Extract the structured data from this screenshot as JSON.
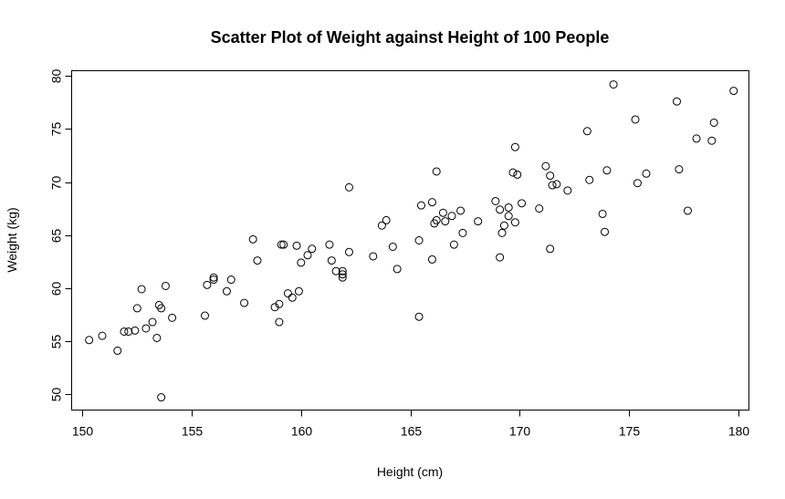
{
  "chart_data": {
    "type": "scatter",
    "title": "Scatter Plot of Weight against Height of 100 People",
    "xlabel": "Height (cm)",
    "ylabel": "Weight (kg)",
    "xlim": [
      149.5,
      180.5
    ],
    "ylim": [
      48.5,
      80.5
    ],
    "xticks": [
      150,
      155,
      160,
      165,
      170,
      175,
      180
    ],
    "yticks": [
      50,
      55,
      60,
      65,
      70,
      75,
      80
    ],
    "grid": false,
    "legend": "none",
    "series": [
      {
        "points": [
          [
            150.3,
            55.1
          ],
          [
            150.9,
            55.5
          ],
          [
            151.6,
            54.1
          ],
          [
            151.9,
            55.9
          ],
          [
            152.1,
            55.9
          ],
          [
            152.4,
            56.0
          ],
          [
            152.5,
            58.1
          ],
          [
            152.7,
            59.9
          ],
          [
            152.9,
            56.2
          ],
          [
            153.2,
            56.8
          ],
          [
            153.4,
            55.3
          ],
          [
            153.5,
            58.4
          ],
          [
            153.6,
            58.1
          ],
          [
            153.6,
            49.7
          ],
          [
            153.8,
            60.2
          ],
          [
            154.1,
            57.2
          ],
          [
            155.6,
            57.4
          ],
          [
            155.7,
            60.3
          ],
          [
            156.0,
            61.0
          ],
          [
            156.0,
            60.8
          ],
          [
            156.6,
            59.7
          ],
          [
            156.8,
            60.8
          ],
          [
            157.4,
            58.6
          ],
          [
            157.8,
            64.6
          ],
          [
            158.0,
            62.6
          ],
          [
            158.8,
            58.2
          ],
          [
            159.0,
            58.5
          ],
          [
            159.0,
            56.8
          ],
          [
            159.1,
            64.1
          ],
          [
            159.2,
            64.1
          ],
          [
            159.4,
            59.5
          ],
          [
            159.6,
            59.1
          ],
          [
            159.8,
            64.0
          ],
          [
            159.9,
            59.7
          ],
          [
            160.0,
            62.4
          ],
          [
            160.3,
            63.1
          ],
          [
            160.5,
            63.7
          ],
          [
            161.3,
            64.1
          ],
          [
            161.4,
            62.6
          ],
          [
            161.6,
            61.6
          ],
          [
            161.9,
            61.3
          ],
          [
            161.9,
            61.6
          ],
          [
            161.9,
            61.0
          ],
          [
            162.2,
            69.5
          ],
          [
            162.2,
            63.4
          ],
          [
            163.3,
            63.0
          ],
          [
            163.7,
            65.9
          ],
          [
            163.9,
            66.4
          ],
          [
            164.2,
            63.9
          ],
          [
            164.4,
            61.8
          ],
          [
            165.4,
            64.5
          ],
          [
            165.5,
            67.8
          ],
          [
            165.4,
            57.3
          ],
          [
            166.0,
            68.1
          ],
          [
            166.0,
            62.7
          ],
          [
            166.1,
            66.1
          ],
          [
            166.2,
            66.4
          ],
          [
            166.2,
            71.0
          ],
          [
            166.5,
            67.1
          ],
          [
            166.6,
            66.3
          ],
          [
            166.9,
            66.8
          ],
          [
            167.0,
            64.1
          ],
          [
            167.3,
            67.3
          ],
          [
            167.4,
            65.2
          ],
          [
            168.1,
            66.3
          ],
          [
            168.9,
            68.2
          ],
          [
            169.1,
            62.9
          ],
          [
            169.1,
            67.4
          ],
          [
            169.2,
            65.2
          ],
          [
            169.3,
            65.9
          ],
          [
            169.5,
            66.8
          ],
          [
            169.5,
            67.6
          ],
          [
            169.7,
            70.9
          ],
          [
            169.8,
            73.3
          ],
          [
            169.8,
            66.2
          ],
          [
            169.9,
            70.7
          ],
          [
            170.1,
            68.0
          ],
          [
            170.9,
            67.5
          ],
          [
            171.2,
            71.5
          ],
          [
            171.4,
            70.6
          ],
          [
            171.4,
            63.7
          ],
          [
            171.5,
            69.7
          ],
          [
            171.7,
            69.8
          ],
          [
            172.2,
            69.2
          ],
          [
            173.1,
            74.8
          ],
          [
            173.2,
            70.2
          ],
          [
            173.8,
            67.0
          ],
          [
            173.9,
            65.3
          ],
          [
            174.0,
            71.1
          ],
          [
            174.3,
            79.2
          ],
          [
            175.3,
            75.9
          ],
          [
            175.4,
            69.9
          ],
          [
            175.8,
            70.8
          ],
          [
            177.2,
            77.6
          ],
          [
            177.3,
            71.2
          ],
          [
            177.7,
            67.3
          ],
          [
            178.1,
            74.1
          ],
          [
            178.8,
            73.9
          ],
          [
            178.9,
            75.6
          ],
          [
            179.8,
            78.6
          ]
        ]
      }
    ]
  }
}
